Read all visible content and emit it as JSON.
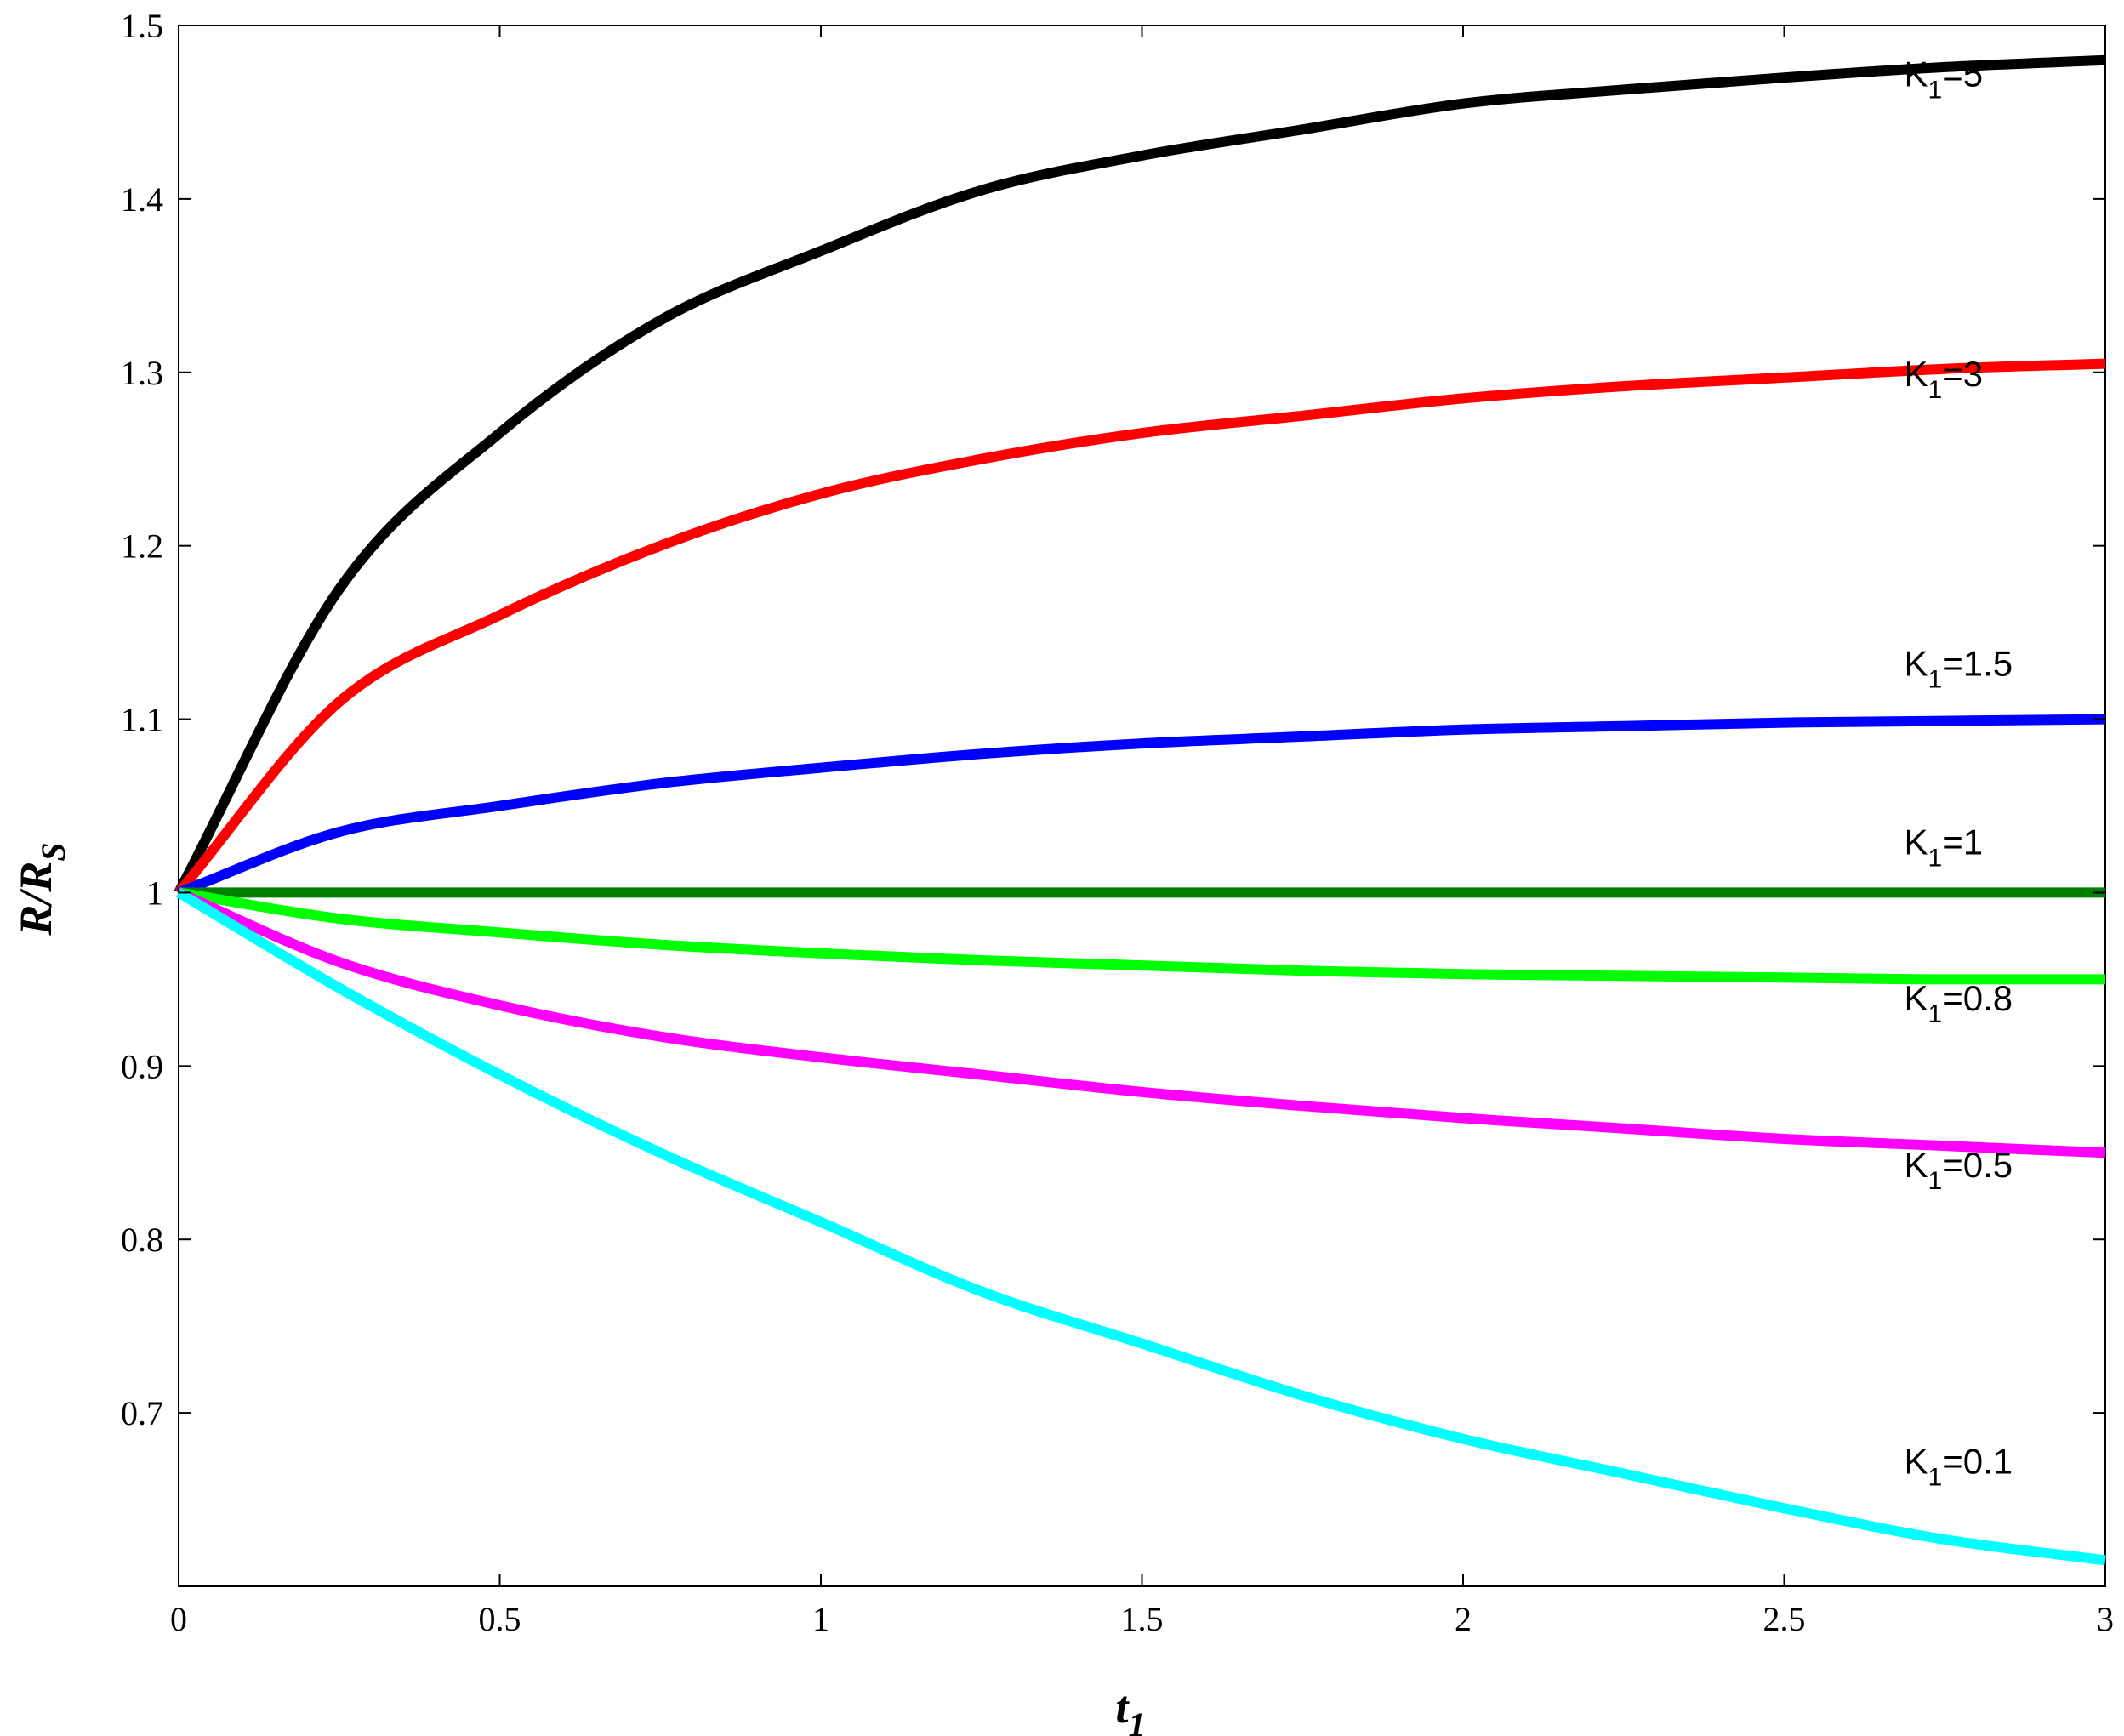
{
  "chart_data": {
    "type": "line",
    "title": "",
    "xlabel": {
      "main": "t",
      "sub": "1"
    },
    "ylabel": {
      "main": "R/R",
      "sub": "S"
    },
    "xlim": [
      0,
      3
    ],
    "ylim": [
      0.6,
      1.5
    ],
    "xticks": [
      0,
      0.5,
      1,
      1.5,
      2,
      2.5,
      3
    ],
    "xtick_labels": [
      "0",
      "0.5",
      "1",
      "1.5",
      "2",
      "2.5",
      "3"
    ],
    "yticks": [
      0.7,
      0.8,
      0.9,
      1,
      1.1,
      1.2,
      1.3,
      1.4,
      1.5
    ],
    "ytick_labels": [
      "0.7",
      "0.8",
      "0.9",
      "1",
      "1.1",
      "1.2",
      "1.3",
      "1.4",
      "1.5"
    ],
    "grid": false,
    "legend": "none",
    "x": [
      0,
      0.25,
      0.5,
      0.75,
      1,
      1.25,
      1.5,
      1.75,
      2,
      2.25,
      2.5,
      2.75,
      3
    ],
    "series": [
      {
        "label_main": "K",
        "label_sub": "1",
        "label_value": "=5",
        "color": "#000000",
        "values": [
          1.0,
          1.175,
          1.265,
          1.33,
          1.37,
          1.405,
          1.425,
          1.44,
          1.455,
          1.463,
          1.47,
          1.476,
          1.48
        ],
        "label_at": [
          2.7,
          1.465
        ]
      },
      {
        "label_main": "K",
        "label_sub": "1",
        "label_value": "=3",
        "color": "#ff0000",
        "values": [
          1.0,
          1.11,
          1.16,
          1.2,
          1.23,
          1.25,
          1.265,
          1.275,
          1.285,
          1.292,
          1.297,
          1.302,
          1.305
        ],
        "label_at": [
          2.7,
          1.292
        ]
      },
      {
        "label_main": "K",
        "label_sub": "1",
        "label_value": "=1.5",
        "color": "#0000ff",
        "values": [
          1.0,
          1.035,
          1.05,
          1.063,
          1.072,
          1.08,
          1.086,
          1.09,
          1.094,
          1.096,
          1.098,
          1.099,
          1.1
        ],
        "label_at": [
          2.7,
          1.125
        ]
      },
      {
        "label_main": "K",
        "label_sub": "1",
        "label_value": "=1",
        "color": "#007f00",
        "values": [
          1,
          1,
          1,
          1,
          1,
          1,
          1,
          1,
          1,
          1,
          1,
          1,
          1
        ],
        "label_at": [
          2.7,
          1.022
        ]
      },
      {
        "label_main": "K",
        "label_sub": "1",
        "label_value": "=0.8",
        "color": "#00ff00",
        "values": [
          1.0,
          0.985,
          0.977,
          0.97,
          0.965,
          0.961,
          0.958,
          0.955,
          0.953,
          0.952,
          0.951,
          0.95,
          0.95
        ],
        "label_at": [
          2.7,
          0.932
        ]
      },
      {
        "label_main": "K",
        "label_sub": "1",
        "label_value": "=0.5",
        "color": "#ff00ff",
        "values": [
          1.0,
          0.96,
          0.935,
          0.917,
          0.905,
          0.895,
          0.885,
          0.877,
          0.87,
          0.864,
          0.858,
          0.854,
          0.85
        ],
        "label_at": [
          2.7,
          0.836
        ]
      },
      {
        "label_main": "K",
        "label_sub": "1",
        "label_value": "=0.1",
        "color": "#00ffff",
        "values": [
          1.0,
          0.945,
          0.895,
          0.85,
          0.81,
          0.77,
          0.74,
          0.71,
          0.685,
          0.665,
          0.645,
          0.627,
          0.615
        ],
        "label_at": [
          2.7,
          0.665
        ]
      }
    ]
  }
}
